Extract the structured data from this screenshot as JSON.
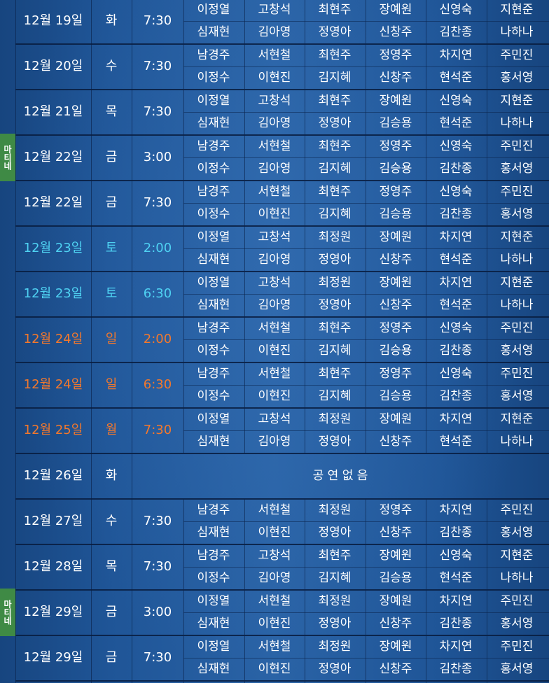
{
  "colors": {
    "background": "#1f5597",
    "weekend_sat": "#4fd2f2",
    "weekend_sun_holiday": "#f3782c",
    "matinee_badge": "#3f8a45"
  },
  "matinee_label": "마티네",
  "rows": [
    {
      "date": "12월 19일",
      "day": "화",
      "time": "7:30",
      "row1": [
        "이정열",
        "고창석",
        "최현주",
        "장예원",
        "신영숙",
        "지현준"
      ],
      "row2": [
        "심재현",
        "김아영",
        "정영아",
        "신창주",
        "김찬종",
        "나하나"
      ]
    },
    {
      "date": "12월 20일",
      "day": "수",
      "time": "7:30",
      "row1": [
        "남경주",
        "서현철",
        "최현주",
        "정영주",
        "차지연",
        "주민진"
      ],
      "row2": [
        "이정수",
        "이현진",
        "김지혜",
        "신창주",
        "현석준",
        "홍서영"
      ]
    },
    {
      "date": "12월 21일",
      "day": "목",
      "time": "7:30",
      "row1": [
        "이정열",
        "고창석",
        "최현주",
        "장예원",
        "신영숙",
        "지현준"
      ],
      "row2": [
        "심재현",
        "김아영",
        "정영아",
        "김승용",
        "현석준",
        "나하나"
      ]
    },
    {
      "date": "12월 22일",
      "day": "금",
      "time": "3:00",
      "row1": [
        "남경주",
        "서현철",
        "최현주",
        "정영주",
        "신영숙",
        "주민진"
      ],
      "row2": [
        "이정수",
        "김아영",
        "김지혜",
        "김승용",
        "김찬종",
        "홍서영"
      ]
    },
    {
      "date": "12월 22일",
      "day": "금",
      "time": "7:30",
      "row1": [
        "남경주",
        "서현철",
        "최현주",
        "정영주",
        "신영숙",
        "주민진"
      ],
      "row2": [
        "이정수",
        "이현진",
        "김지혜",
        "김승용",
        "김찬종",
        "홍서영"
      ]
    },
    {
      "date": "12월 23일",
      "day": "토",
      "time": "2:00",
      "row1": [
        "이정열",
        "고창석",
        "최정원",
        "장예원",
        "차지연",
        "지현준"
      ],
      "row2": [
        "심재현",
        "김아영",
        "정영아",
        "신창주",
        "현석준",
        "나하나"
      ]
    },
    {
      "date": "12월 23일",
      "day": "토",
      "time": "6:30",
      "row1": [
        "이정열",
        "고창석",
        "최정원",
        "장예원",
        "차지연",
        "지현준"
      ],
      "row2": [
        "심재현",
        "김아영",
        "정영아",
        "신창주",
        "현석준",
        "나하나"
      ]
    },
    {
      "date": "12월 24일",
      "day": "일",
      "time": "2:00",
      "row1": [
        "남경주",
        "서현철",
        "최현주",
        "정영주",
        "신영숙",
        "주민진"
      ],
      "row2": [
        "이정수",
        "이현진",
        "김지혜",
        "김승용",
        "김찬종",
        "홍서영"
      ]
    },
    {
      "date": "12월 24일",
      "day": "일",
      "time": "6:30",
      "row1": [
        "남경주",
        "서현철",
        "최현주",
        "정영주",
        "신영숙",
        "주민진"
      ],
      "row2": [
        "이정수",
        "이현진",
        "김지혜",
        "김승용",
        "김찬종",
        "홍서영"
      ]
    },
    {
      "date": "12월 25일",
      "day": "월",
      "time": "7:30",
      "row1": [
        "이정열",
        "고창석",
        "최정원",
        "장예원",
        "차지연",
        "지현준"
      ],
      "row2": [
        "심재현",
        "김아영",
        "정영아",
        "신창주",
        "현석준",
        "나하나"
      ]
    },
    {
      "date": "12월 26일",
      "day": "화",
      "notice": "공 연 없 음"
    },
    {
      "date": "12월 27일",
      "day": "수",
      "time": "7:30",
      "row1": [
        "남경주",
        "서현철",
        "최정원",
        "정영주",
        "차지연",
        "주민진"
      ],
      "row2": [
        "심재현",
        "이현진",
        "정영아",
        "신창주",
        "김찬종",
        "홍서영"
      ]
    },
    {
      "date": "12월 28일",
      "day": "목",
      "time": "7:30",
      "row1": [
        "남경주",
        "고창석",
        "최현주",
        "장예원",
        "신영숙",
        "지현준"
      ],
      "row2": [
        "이정수",
        "김아영",
        "김지혜",
        "김승용",
        "현석준",
        "나하나"
      ]
    },
    {
      "date": "12월 29일",
      "day": "금",
      "time": "3:00",
      "row1": [
        "이정열",
        "서현철",
        "최정원",
        "장예원",
        "차지연",
        "주민진"
      ],
      "row2": [
        "심재현",
        "이현진",
        "정영아",
        "신창주",
        "김찬종",
        "홍서영"
      ]
    },
    {
      "date": "12월 29일",
      "day": "금",
      "time": "7:30",
      "row1": [
        "이정열",
        "서현철",
        "최정원",
        "장예원",
        "차지연",
        "주민진"
      ],
      "row2": [
        "심재현",
        "이현진",
        "정영아",
        "신창주",
        "김찬종",
        "홍서영"
      ]
    }
  ]
}
